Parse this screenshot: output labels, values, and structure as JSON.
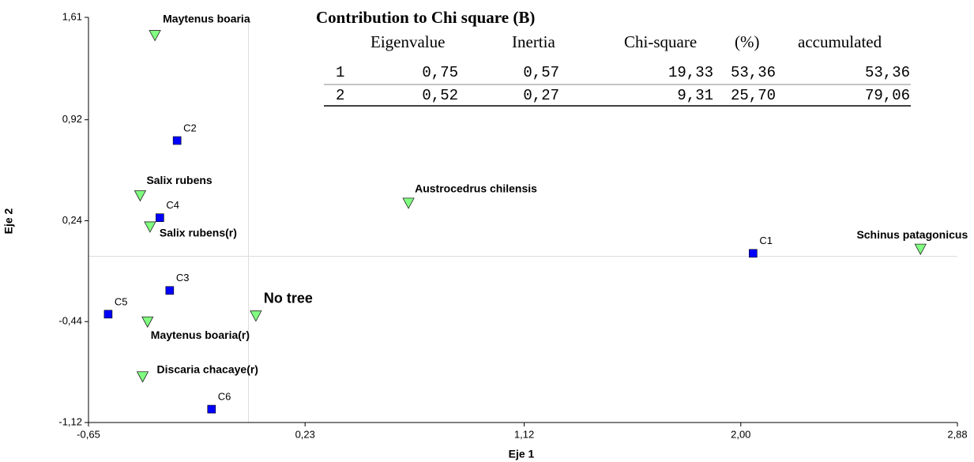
{
  "chart_data": {
    "type": "scatter",
    "xlabel": "Eje 1",
    "ylabel": "Eje 2",
    "xlim": [
      -0.65,
      2.88
    ],
    "xticks": [
      {
        "value": -0.65,
        "label": "-0,65"
      },
      {
        "value": 0.23,
        "label": "0,23"
      },
      {
        "value": 1.12,
        "label": "1,12"
      },
      {
        "value": 2.0,
        "label": "2,00"
      },
      {
        "value": 2.88,
        "label": "2,88"
      }
    ],
    "ylim": [
      -1.12,
      1.61
    ],
    "yticks": [
      {
        "value": -1.12,
        "label": "-1,12"
      },
      {
        "value": -0.44,
        "label": "-0,44"
      },
      {
        "value": 0.24,
        "label": "0,24"
      },
      {
        "value": 0.92,
        "label": "0,92"
      },
      {
        "value": 1.61,
        "label": "1,61"
      }
    ],
    "reference_lines": {
      "x": 0,
      "y": 0
    },
    "series": [
      {
        "marker": "square",
        "color": "#0000ff",
        "labels": [
          "C1",
          "C2",
          "C3",
          "C4",
          "C5",
          "C6"
        ],
        "x": [
          2.05,
          -0.29,
          -0.32,
          -0.36,
          -0.57,
          -0.15
        ],
        "values": [
          0.02,
          0.78,
          -0.23,
          0.26,
          -0.39,
          -1.03
        ]
      },
      {
        "marker": "triangle",
        "color": "#80ff80",
        "labels": [
          "Maytenus boaria",
          "Salix rubens",
          "Salix rubens(r)",
          "Austrocedrus chilensis",
          "Schinus patagonicus",
          "No tree",
          "Maytenus boaria(r)",
          "Discaria chacaye(r)"
        ],
        "x": [
          -0.38,
          -0.44,
          -0.4,
          0.65,
          2.73,
          0.03,
          -0.41,
          -0.43
        ],
        "values": [
          1.49,
          0.41,
          0.2,
          0.36,
          0.05,
          -0.4,
          -0.44,
          -0.81
        ]
      }
    ]
  },
  "table": {
    "title": "Contribution to Chi square (B)",
    "headers": [
      "Eigenvalue",
      "Inertia",
      "Chi-square",
      "(%)",
      "accumulated"
    ],
    "rows": [
      [
        "1",
        "0,75",
        "0,57",
        "19,33",
        "53,36",
        "53,36"
      ],
      [
        "2",
        "0,52",
        "0,27",
        "9,31",
        "25,70",
        "79,06"
      ]
    ]
  }
}
